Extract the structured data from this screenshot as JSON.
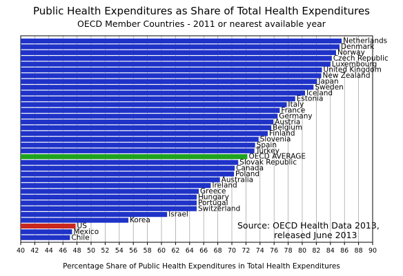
{
  "chart_data": {
    "type": "bar",
    "orientation": "horizontal",
    "title": "Public Health Expenditures as Share of Total Health Expenditures",
    "subtitle": "OECD Member Countries - 2011 or nearest available year",
    "xlabel": "Percentage Share of Public Health Expenditures in Total Health Expenditures",
    "ylabel": "",
    "xlim": [
      40,
      90
    ],
    "x_ticks": [
      40,
      42,
      44,
      46,
      48,
      50,
      52,
      54,
      56,
      58,
      60,
      62,
      64,
      66,
      68,
      70,
      72,
      74,
      76,
      78,
      80,
      82,
      84,
      86,
      88,
      90
    ],
    "grid": "vertical gridlines",
    "annotation": {
      "line1": "Source:  OECD Health Data 2013,",
      "line2": "released June 2013"
    },
    "colors": {
      "default_bar": "#1f33c8",
      "oecd_average": "#1fa31f",
      "us": "#c8281e",
      "grid": "#9a9a9a"
    },
    "categories": [
      "Netherlands",
      "Denmark",
      "Norway",
      "Czech Republic",
      "Luxembourg",
      "United Kingdom",
      "New Zealand",
      "Japan",
      "Sweden",
      "Iceland",
      "Estonia",
      "Italy",
      "France",
      "Germany",
      "Austria",
      "Belgium",
      "Finland",
      "Slovenia",
      "Spain",
      "Turkey",
      "OECD AVERAGE",
      "Slovak Republic",
      "Canada",
      "Poland",
      "Australia",
      "Ireland",
      "Greece",
      "Hungary",
      "Portugal",
      "Switzerland",
      "Israel",
      "Korea",
      "US",
      "Mexico",
      "Chile"
    ],
    "values": [
      85.6,
      85.3,
      84.8,
      84.2,
      84.0,
      82.8,
      82.7,
      82.1,
      81.6,
      80.4,
      79.0,
      77.8,
      76.8,
      76.5,
      75.9,
      75.6,
      75.1,
      73.8,
      73.3,
      73.2,
      72.2,
      70.9,
      70.4,
      70.3,
      68.3,
      67.0,
      65.3,
      65.0,
      65.0,
      65.0,
      60.8,
      55.3,
      47.8,
      47.3,
      47.0
    ],
    "bar_color_keys": {
      "OECD AVERAGE": "oecd_average",
      "US": "us"
    }
  }
}
